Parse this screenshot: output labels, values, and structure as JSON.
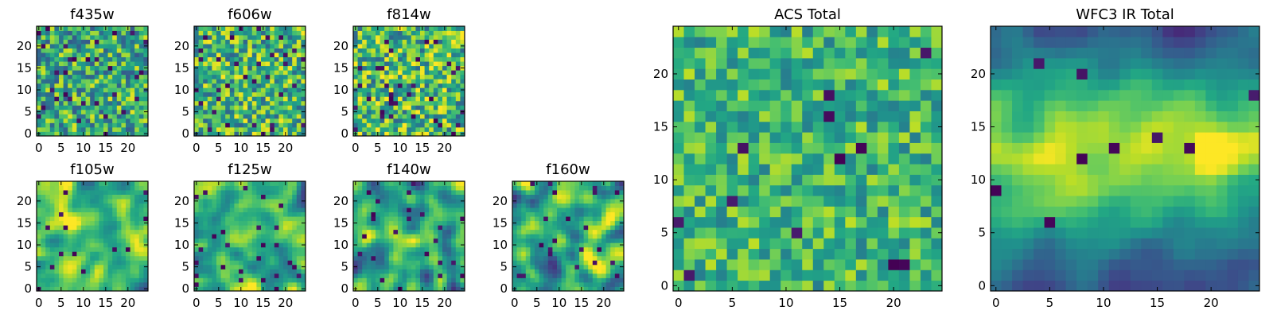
{
  "chart_data": [
    {
      "type": "heatmap",
      "title": "f435w",
      "grid_size": 25,
      "colormap": "viridis",
      "grid": false,
      "xlabel": "",
      "ylabel": "",
      "xlim": [
        -0.5,
        24.5
      ],
      "ylim": [
        -0.5,
        24.5
      ],
      "xticks": [
        "0",
        "5",
        "10",
        "15",
        "20"
      ],
      "yticks": [
        "0",
        "5",
        "10",
        "15",
        "20"
      ],
      "texture": "noise",
      "seed": 11,
      "mean": 0.62,
      "spread": 0.42,
      "dark_fraction": 0.05,
      "values": null
    },
    {
      "type": "heatmap",
      "title": "f606w",
      "grid_size": 25,
      "colormap": "viridis",
      "grid": false,
      "xlabel": "",
      "ylabel": "",
      "xlim": [
        -0.5,
        24.5
      ],
      "ylim": [
        -0.5,
        24.5
      ],
      "xticks": [
        "0",
        "5",
        "10",
        "15",
        "20"
      ],
      "yticks": [
        "0",
        "5",
        "10",
        "15",
        "20"
      ],
      "texture": "noise",
      "seed": 23,
      "mean": 0.66,
      "spread": 0.42,
      "dark_fraction": 0.05,
      "values": null
    },
    {
      "type": "heatmap",
      "title": "f814w",
      "grid_size": 25,
      "colormap": "viridis",
      "grid": false,
      "xlabel": "",
      "ylabel": "",
      "xlim": [
        -0.5,
        24.5
      ],
      "ylim": [
        -0.5,
        24.5
      ],
      "xticks": [
        "0",
        "5",
        "10",
        "15",
        "20"
      ],
      "yticks": [
        "0",
        "5",
        "10",
        "15",
        "20"
      ],
      "texture": "noise",
      "seed": 37,
      "mean": 0.68,
      "spread": 0.44,
      "dark_fraction": 0.05,
      "values": null
    },
    {
      "type": "heatmap",
      "title": "f105w",
      "grid_size": 25,
      "colormap": "viridis",
      "grid": false,
      "xlabel": "",
      "ylabel": "",
      "xlim": [
        -0.5,
        24.5
      ],
      "ylim": [
        -0.5,
        24.5
      ],
      "xticks": [
        "0",
        "5",
        "10",
        "15",
        "20"
      ],
      "yticks": [
        "0",
        "5",
        "10",
        "15",
        "20"
      ],
      "texture": "smooth",
      "seed": 41,
      "mean": 0.68,
      "spread": 0.55,
      "dark_fraction": 0.03,
      "values": null
    },
    {
      "type": "heatmap",
      "title": "f125w",
      "grid_size": 25,
      "colormap": "viridis",
      "grid": false,
      "xlabel": "",
      "ylabel": "",
      "xlim": [
        -0.5,
        24.5
      ],
      "ylim": [
        -0.5,
        24.5
      ],
      "xticks": [
        "0",
        "5",
        "10",
        "15",
        "20"
      ],
      "yticks": [
        "0",
        "5",
        "10",
        "15",
        "20"
      ],
      "texture": "smooth",
      "seed": 53,
      "mean": 0.64,
      "spread": 0.55,
      "dark_fraction": 0.03,
      "values": null
    },
    {
      "type": "heatmap",
      "title": "f140w",
      "grid_size": 25,
      "colormap": "viridis",
      "grid": false,
      "xlabel": "",
      "ylabel": "",
      "xlim": [
        -0.5,
        24.5
      ],
      "ylim": [
        -0.5,
        24.5
      ],
      "xticks": [
        "0",
        "5",
        "10",
        "15",
        "20"
      ],
      "yticks": [
        "0",
        "5",
        "10",
        "15",
        "20"
      ],
      "texture": "smooth",
      "seed": 67,
      "mean": 0.6,
      "spread": 0.58,
      "dark_fraction": 0.03,
      "values": null
    },
    {
      "type": "heatmap",
      "title": "f160w",
      "grid_size": 25,
      "colormap": "viridis",
      "grid": false,
      "xlabel": "",
      "ylabel": "",
      "xlim": [
        -0.5,
        24.5
      ],
      "ylim": [
        -0.5,
        24.5
      ],
      "xticks": [
        "0",
        "5",
        "10",
        "15",
        "20"
      ],
      "yticks": [
        "0",
        "5",
        "10",
        "15",
        "20"
      ],
      "texture": "smooth",
      "seed": 79,
      "mean": 0.62,
      "spread": 0.58,
      "dark_fraction": 0.03,
      "values": null
    },
    {
      "type": "heatmap",
      "title": "ACS Total",
      "grid_size": 25,
      "colormap": "viridis",
      "grid": false,
      "xlabel": "",
      "ylabel": "",
      "xlim": [
        -0.5,
        24.5
      ],
      "ylim": [
        -0.5,
        24.5
      ],
      "xticks": [
        "0",
        "5",
        "10",
        "15",
        "20"
      ],
      "yticks": [
        "0",
        "5",
        "10",
        "15",
        "20"
      ],
      "texture": "noise",
      "seed": 97,
      "mean": 0.66,
      "spread": 0.3,
      "dark_fraction": 0.025,
      "values": null
    },
    {
      "type": "heatmap",
      "title": "WFC3 IR Total",
      "grid_size": 25,
      "colormap": "viridis",
      "grid": false,
      "xlabel": "",
      "ylabel": "",
      "xlim": [
        -0.5,
        24.5
      ],
      "ylim": [
        -0.5,
        24.5
      ],
      "xticks": [
        "0",
        "5",
        "10",
        "15",
        "20"
      ],
      "yticks": [
        "0",
        "5",
        "10",
        "15",
        "20"
      ],
      "texture": "band",
      "seed": 113,
      "mean": 0.5,
      "spread": 0.5,
      "dark_fraction": 0.02,
      "values": null
    }
  ]
}
